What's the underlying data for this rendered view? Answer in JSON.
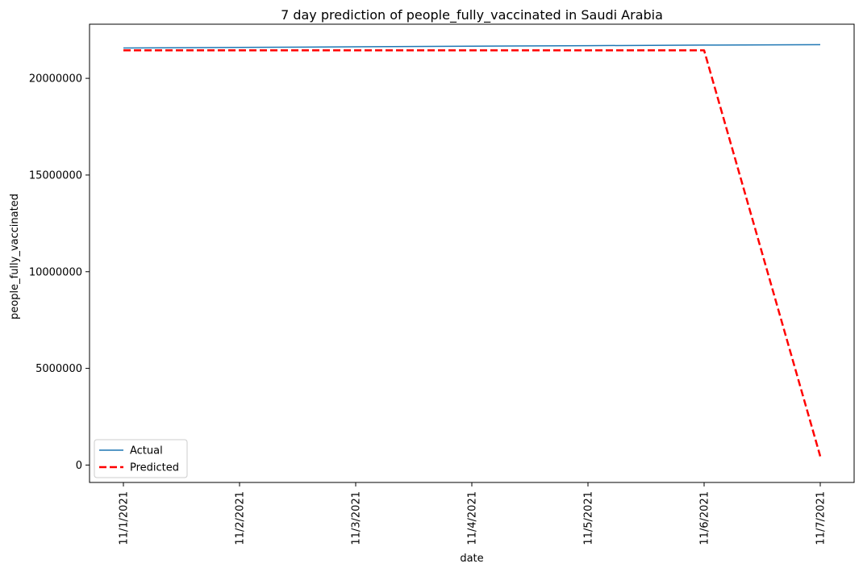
{
  "chart_data": {
    "type": "line",
    "title": "7 day prediction of people_fully_vaccinated in Saudi Arabia",
    "xlabel": "date",
    "ylabel": "people_fully_vaccinated",
    "categories": [
      "11/1/2021",
      "11/2/2021",
      "11/3/2021",
      "11/4/2021",
      "11/5/2021",
      "11/6/2021",
      "11/7/2021"
    ],
    "yticks": [
      0,
      5000000,
      10000000,
      15000000,
      20000000
    ],
    "ylim": [
      -900000,
      22800000
    ],
    "series": [
      {
        "name": "Actual",
        "color": "#1f77b4",
        "style": "solid",
        "values": [
          21570000,
          21600000,
          21630000,
          21660000,
          21690000,
          21720000,
          21740000
        ]
      },
      {
        "name": "Predicted",
        "color": "#ff0000",
        "style": "dashed",
        "values": [
          21450000,
          21450000,
          21450000,
          21450000,
          21450000,
          21450000,
          450000
        ]
      }
    ],
    "legend": {
      "position": "lower-left"
    },
    "grid": false
  }
}
